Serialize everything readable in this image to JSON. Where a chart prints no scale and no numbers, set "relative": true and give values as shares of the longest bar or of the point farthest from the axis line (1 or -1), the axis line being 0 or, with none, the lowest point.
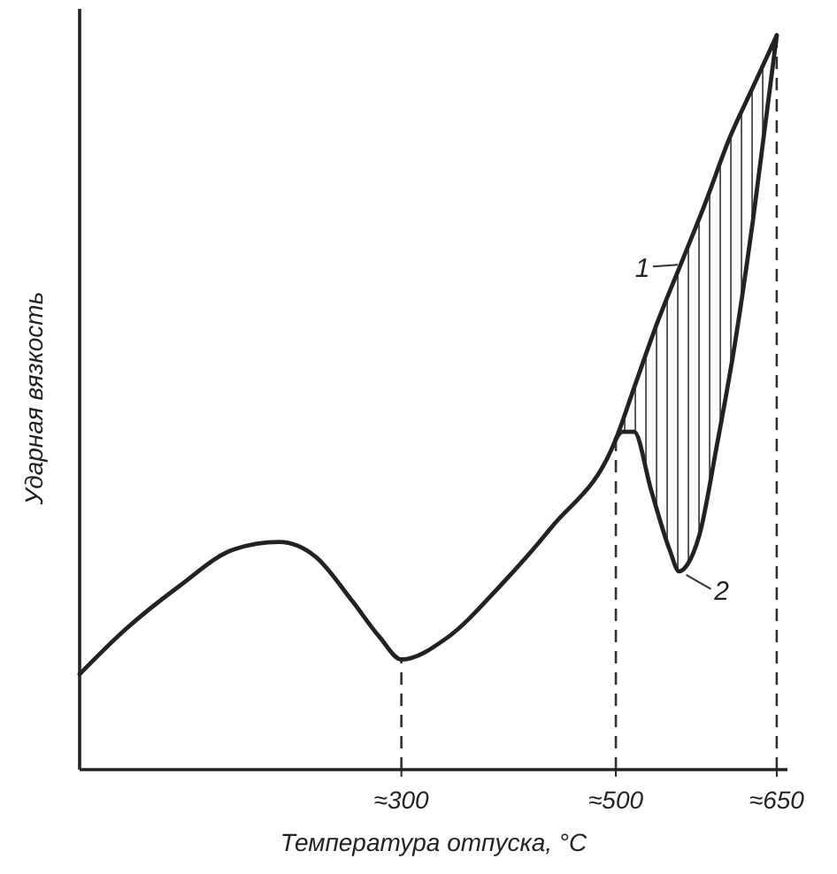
{
  "chart_data": {
    "type": "line",
    "relative": true,
    "xlabel": "Температура отпуска, °C",
    "ylabel": "Ударная вязкость",
    "xlim": [
      0,
      660
    ],
    "xticks": [
      {
        "value": 300,
        "label": "≈300"
      },
      {
        "value": 500,
        "label": "≈500"
      },
      {
        "value": 650,
        "label": "≈650"
      }
    ],
    "tick_labels": "x",
    "line_style": "solid",
    "ref_lines": [
      {
        "axis": "x",
        "value": 300,
        "line_style": "dashed"
      },
      {
        "axis": "x",
        "value": 500,
        "line_style": "dashed"
      },
      {
        "axis": "x",
        "value": 650,
        "line_style": "dashed"
      }
    ],
    "series": [
      {
        "name": "1",
        "color": "#222222",
        "x": [
          0,
          42,
          93,
          144,
          186,
          220,
          254,
          280,
          300,
          343,
          392,
          440,
          500,
          517,
          539,
          561,
          583,
          606,
          628,
          650
        ],
        "values": [
          0.13,
          0.19,
          0.25,
          0.3,
          0.31,
          0.29,
          0.23,
          0.18,
          0.15,
          0.18,
          0.25,
          0.33,
          0.45,
          0.52,
          0.61,
          0.69,
          0.77,
          0.86,
          0.93,
          1
        ]
      },
      {
        "name": "2",
        "color": "#222222",
        "x": [
          500,
          506,
          517,
          533,
          550,
          559,
          567,
          578,
          594,
          611,
          628,
          650
        ],
        "values": [
          0.45,
          0.46,
          0.46,
          0.38,
          0.3,
          0.27,
          0.28,
          0.32,
          0.44,
          0.58,
          0.75,
          1
        ]
      }
    ]
  }
}
